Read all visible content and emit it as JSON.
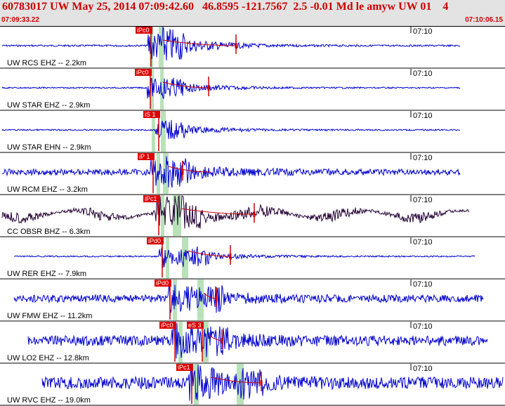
{
  "header": {
    "title": "60783017 UW May 25, 2014 07:09:42.60   46.8595 -121.7567  2.5 -0.01 Md le amyw UW 01    4",
    "start_time": "07:09:33.22",
    "end_time": "07:10:06.15"
  },
  "colors": {
    "trace": "#0000cc",
    "trace_alt": "#220033",
    "pick_bg": "#dd0000",
    "pick_window": "#b9e2b9",
    "fit": "#cc0000",
    "header_bg": "#e3e3e3",
    "title": "#cc0000"
  },
  "minute_label": "07:10",
  "stations": [
    {
      "label": "UW RCS EHZ -- 2.2km",
      "picks": [
        "iPc0"
      ],
      "color": "trace",
      "noise": 0.05,
      "amp": 1.0
    },
    {
      "label": "UW STAR EHZ -- 2.9km",
      "picks": [
        "iPc0"
      ],
      "color": "trace",
      "noise": 0.04,
      "amp": 0.6
    },
    {
      "label": "UW STAR EHN -- 2.9km",
      "picks": [
        "iS 1"
      ],
      "color": "trace",
      "noise": 0.04,
      "amp": 0.5
    },
    {
      "label": "UW RCM EHZ -- 3.2km",
      "picks": [
        "iP 1"
      ],
      "color": "trace",
      "noise": 0.18,
      "amp": 0.8
    },
    {
      "label": "CC OBSR BHZ -- 6.3km",
      "picks": [
        "iPc1"
      ],
      "color": "trace_alt",
      "noise": 0.2,
      "amp": 0.8
    },
    {
      "label": "UW RER EHZ -- 7.9km",
      "picks": [
        "iPd0"
      ],
      "color": "trace",
      "noise": 0.04,
      "amp": 0.7
    },
    {
      "label": "UW FMW EHZ -- 11.2km",
      "picks": [
        "iPd0"
      ],
      "color": "trace",
      "noise": 0.22,
      "amp": 0.9
    },
    {
      "label": "UW LO2 EHZ -- 12.8km",
      "picks": [
        "iPc0",
        "eS 3"
      ],
      "color": "trace",
      "noise": 0.3,
      "amp": 0.9
    },
    {
      "label": "UW RVC EHZ -- 19.0km",
      "picks": [
        "iPc1"
      ],
      "color": "trace",
      "noise": 0.35,
      "amp": 1.0
    }
  ]
}
